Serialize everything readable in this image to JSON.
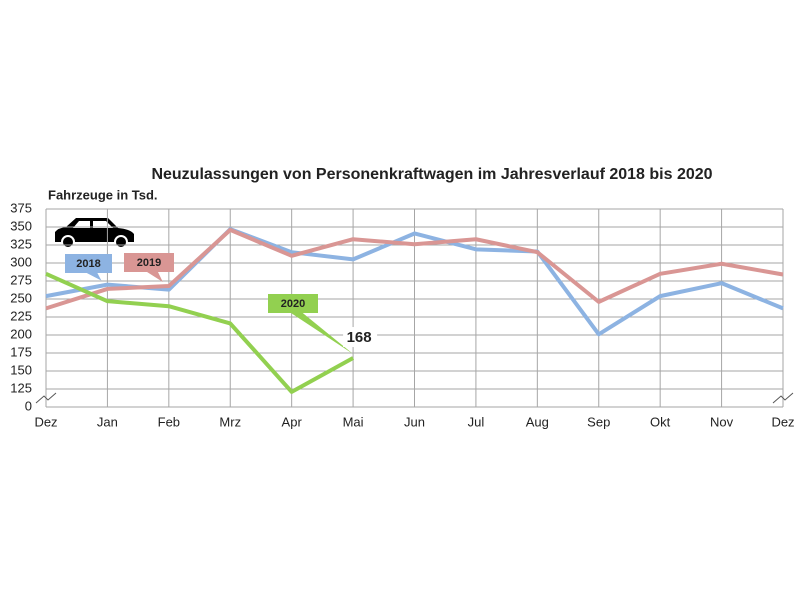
{
  "chart_data": {
    "type": "line",
    "title": "Neuzulassungen von Personenkraftwagen im Jahresverlauf 2018 bis 2020",
    "y_label": "Fahrzeuge in Tsd.",
    "categories": [
      "Dez",
      "Jan",
      "Feb",
      "Mrz",
      "Apr",
      "Mai",
      "Jun",
      "Jul",
      "Aug",
      "Sep",
      "Okt",
      "Nov",
      "Dez"
    ],
    "series": [
      {
        "name": "2018",
        "color": "#8db3e2",
        "values": [
          254,
          270,
          263,
          347,
          315,
          305,
          341,
          319,
          316,
          201,
          254,
          272,
          237
        ]
      },
      {
        "name": "2019",
        "color": "#d99694",
        "values": [
          237,
          264,
          268,
          346,
          310,
          333,
          326,
          333,
          315,
          246,
          285,
          299,
          284
        ]
      },
      {
        "name": "2020",
        "color": "#92d050",
        "values": [
          285,
          247,
          240,
          216,
          121,
          168,
          null,
          null,
          null,
          null,
          null,
          null,
          null
        ]
      }
    ],
    "ylim": [
      0,
      375
    ],
    "y_break": [
      0,
      100
    ],
    "yticks": [
      0,
      125,
      150,
      175,
      200,
      225,
      250,
      275,
      300,
      325,
      350,
      375
    ],
    "grid": true
  }
}
